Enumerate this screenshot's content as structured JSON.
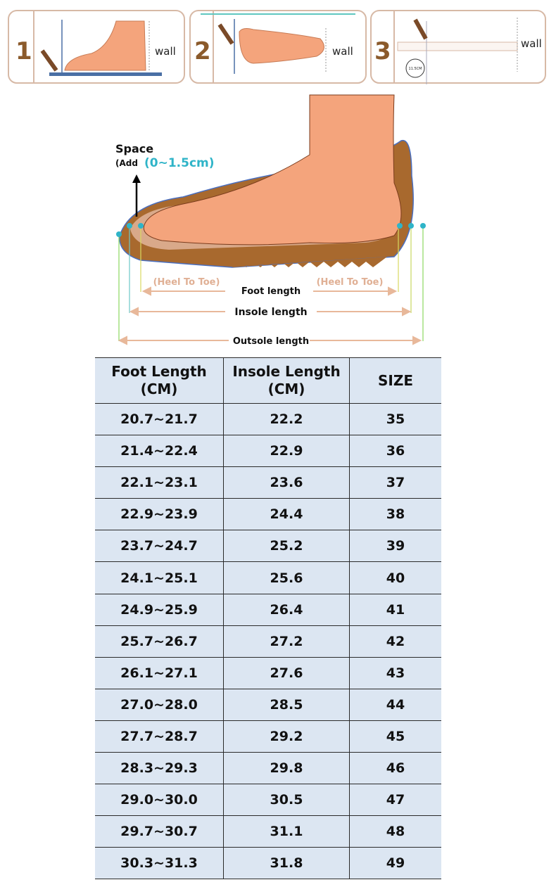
{
  "steps": [
    {
      "number": "1",
      "label": "wall"
    },
    {
      "number": "2",
      "label": "wall"
    },
    {
      "number": "3",
      "label": "wall",
      "ruler_label": "11.5CM"
    }
  ],
  "diagram": {
    "space_label": "Space",
    "add_label": "(Add",
    "add_value": "(0~1.5cm)",
    "heel_to_toe_left": "(Heel To Toe)",
    "heel_to_toe_right": "(Heel To Toe)",
    "foot_length": "Foot length",
    "insole_length": "Insole length",
    "outsole_length": "Outsole length"
  },
  "table": {
    "headers": [
      [
        "Foot Length",
        "(CM)"
      ],
      [
        "Insole Length",
        "(CM)"
      ],
      [
        "SIZE"
      ]
    ],
    "rows": [
      [
        "20.7~21.7",
        "22.2",
        "35"
      ],
      [
        "21.4~22.4",
        "22.9",
        "36"
      ],
      [
        "22.1~23.1",
        "23.6",
        "37"
      ],
      [
        "22.9~23.9",
        "24.4",
        "38"
      ],
      [
        "23.7~24.7",
        "25.2",
        "39"
      ],
      [
        "24.1~25.1",
        "25.6",
        "40"
      ],
      [
        "24.9~25.9",
        "26.4",
        "41"
      ],
      [
        "25.7~26.7",
        "27.2",
        "42"
      ],
      [
        "26.1~27.1",
        "27.6",
        "43"
      ],
      [
        "27.0~28.0",
        "28.5",
        "44"
      ],
      [
        "27.7~28.7",
        "29.2",
        "45"
      ],
      [
        "28.3~29.3",
        "29.8",
        "46"
      ],
      [
        "29.0~30.0",
        "30.5",
        "47"
      ],
      [
        "29.7~30.7",
        "31.1",
        "48"
      ],
      [
        "30.3~31.3",
        "31.8",
        "49"
      ]
    ]
  },
  "colors": {
    "table_bg": "#dce6f2",
    "step_number": "#8b5a2b",
    "foot": "#f4a47c",
    "shoe": "#a8692e",
    "accent_cyan": "#2fb4c8"
  }
}
